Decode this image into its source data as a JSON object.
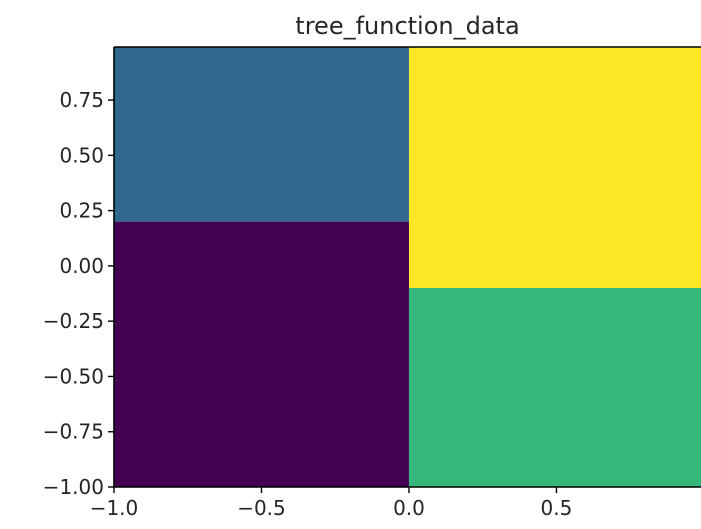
{
  "chart_data": {
    "type": "heatmap",
    "title": "tree_function_data",
    "xlabel": "",
    "ylabel": "",
    "xlim": [
      -1.0,
      0.99
    ],
    "ylim": [
      -1.0,
      0.99
    ],
    "x_ticks": [
      -1.0,
      -0.5,
      0.0,
      0.5
    ],
    "x_tick_labels": [
      "−1.0",
      "−0.5",
      "0.0",
      "0.5"
    ],
    "y_ticks": [
      -1.0,
      -0.75,
      -0.5,
      -0.25,
      0.0,
      0.25,
      0.5,
      0.75
    ],
    "y_tick_labels": [
      "−1.00",
      "−0.75",
      "−0.50",
      "−0.25",
      "0.00",
      "0.25",
      "0.50",
      "0.75"
    ],
    "grid": false,
    "colormap": "viridis",
    "regions": [
      {
        "x": [
          -1.0,
          0.0
        ],
        "y": [
          0.2,
          0.99
        ],
        "color": "#31688e"
      },
      {
        "x": [
          -1.0,
          0.0
        ],
        "y": [
          -1.0,
          0.2
        ],
        "color": "#440154"
      },
      {
        "x": [
          0.0,
          0.99
        ],
        "y": [
          -0.1,
          0.99
        ],
        "color": "#fde725"
      },
      {
        "x": [
          0.0,
          0.99
        ],
        "y": [
          -1.0,
          -0.1
        ],
        "color": "#35b779"
      }
    ]
  }
}
